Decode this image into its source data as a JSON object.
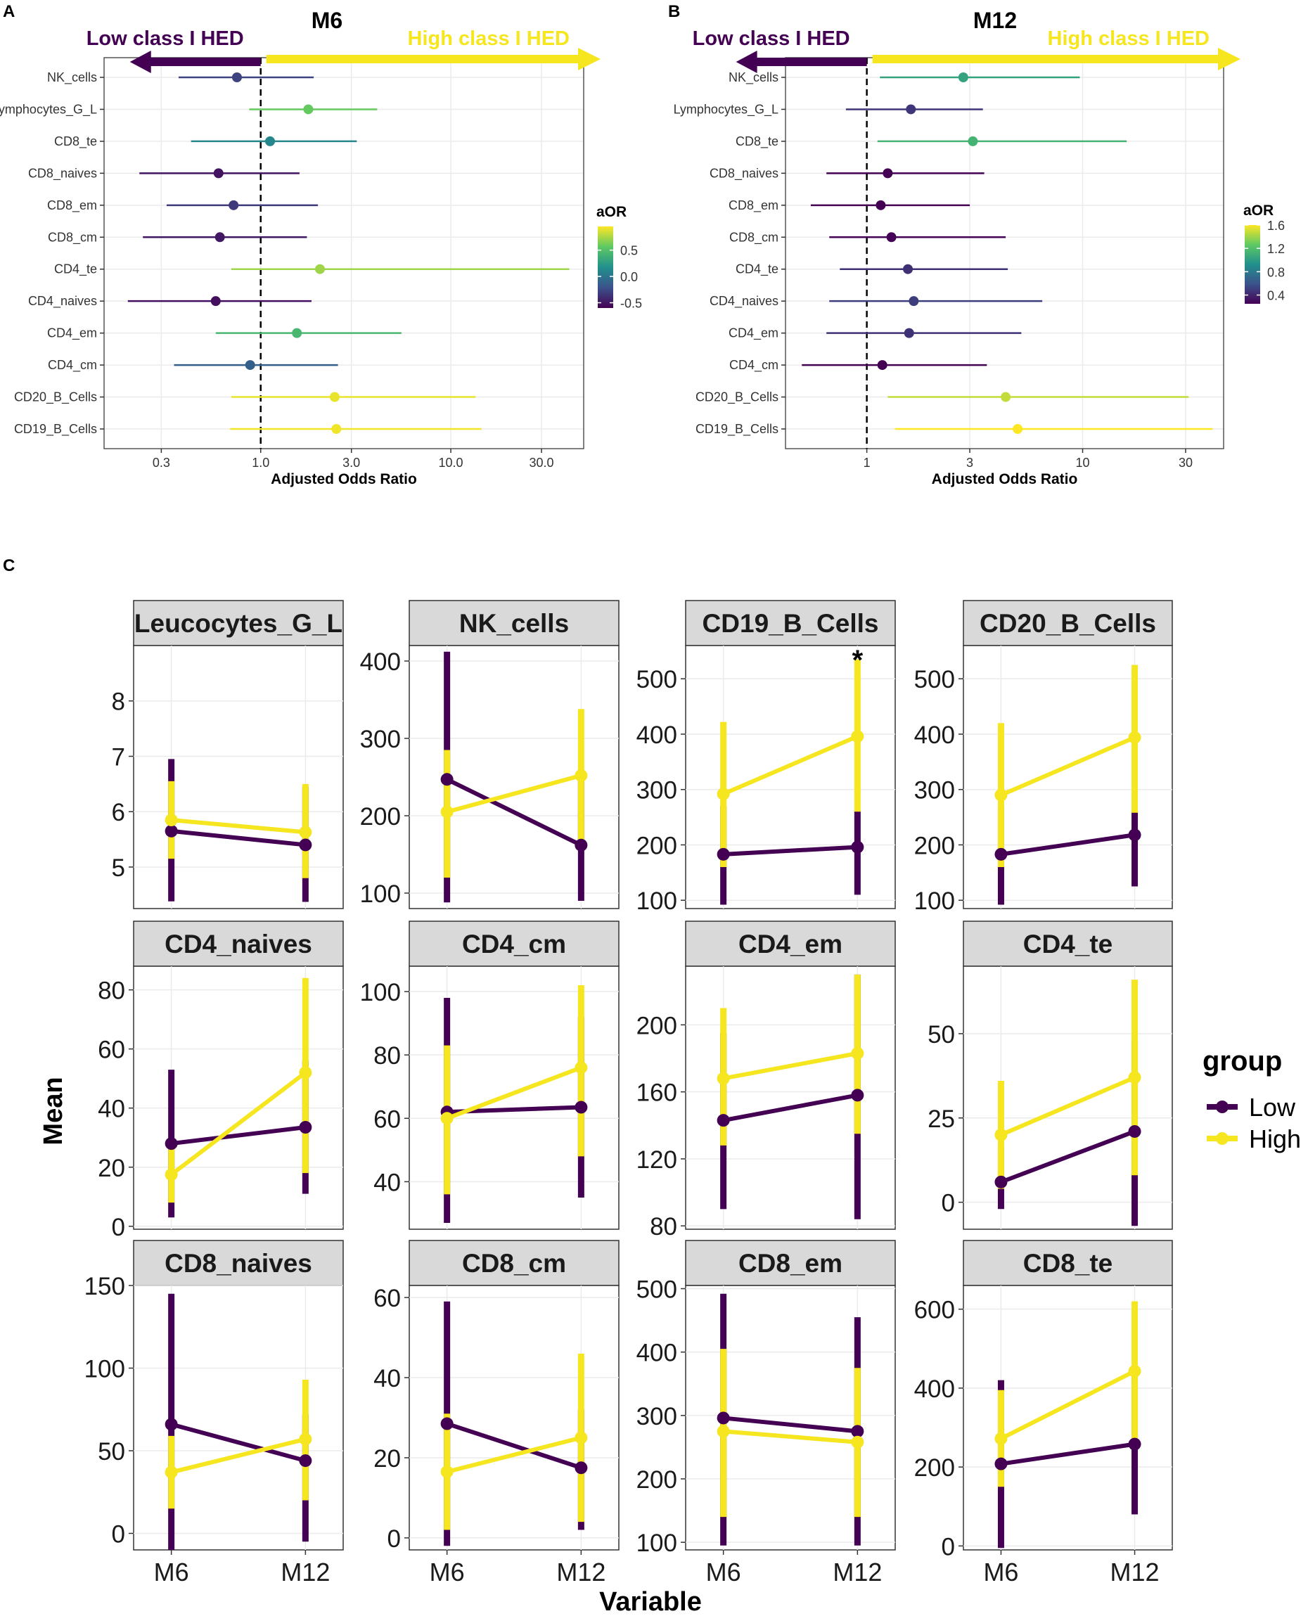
{
  "panel_labels": {
    "a": "A",
    "b": "B",
    "c": "C"
  },
  "colors": {
    "low": "#440154",
    "high": "#F5E61F",
    "grid": "#EBEBEB",
    "strip": "#D9D9D9",
    "viridis": [
      "#440154",
      "#3B528B",
      "#21908C",
      "#5DC963",
      "#FDE725"
    ]
  },
  "forest_common": {
    "low_arrow_label": "Low class I HED",
    "high_arrow_label": "High class I HED",
    "xlabel": "Adjusted Odds Ratio",
    "legend_title": "aOR"
  },
  "chart_data": [
    {
      "type": "forest",
      "title": "M6",
      "log_x": true,
      "xlim": [
        0.15,
        50
      ],
      "xticks": [
        0.3,
        1.0,
        3.0,
        10.0,
        30.0
      ],
      "xtick_labels": [
        "0.3",
        "1.0",
        "3.0",
        "10.0",
        "30.0"
      ],
      "reference_line": 1.0,
      "legend": {
        "min": -0.6,
        "max": 0.95,
        "ticks": [
          0.5,
          0.0,
          -0.5
        ],
        "tick_labels": [
          "0.5",
          "0.0",
          "-0.5"
        ]
      },
      "rows": [
        {
          "label": "NK_cells",
          "aor": 0.75,
          "lo": 0.37,
          "hi": 1.9,
          "color_value": -0.29
        },
        {
          "label": "Lymphocytes_G_L",
          "aor": 1.78,
          "lo": 0.87,
          "hi": 4.1,
          "color_value": 0.58
        },
        {
          "label": "CD8_te",
          "aor": 1.12,
          "lo": 0.43,
          "hi": 3.2,
          "color_value": 0.11
        },
        {
          "label": "CD8_naives",
          "aor": 0.6,
          "lo": 0.23,
          "hi": 1.6,
          "color_value": -0.51
        },
        {
          "label": "CD8_em",
          "aor": 0.72,
          "lo": 0.32,
          "hi": 2.0,
          "color_value": -0.33
        },
        {
          "label": "CD8_cm",
          "aor": 0.61,
          "lo": 0.24,
          "hi": 1.75,
          "color_value": -0.49
        },
        {
          "label": "CD4_te",
          "aor": 2.05,
          "lo": 0.7,
          "hi": 42,
          "color_value": 0.72
        },
        {
          "label": "CD4_naives",
          "aor": 0.58,
          "lo": 0.2,
          "hi": 1.85,
          "color_value": -0.54
        },
        {
          "label": "CD4_em",
          "aor": 1.55,
          "lo": 0.58,
          "hi": 5.5,
          "color_value": 0.44
        },
        {
          "label": "CD4_cm",
          "aor": 0.88,
          "lo": 0.35,
          "hi": 2.55,
          "color_value": -0.13
        },
        {
          "label": "CD20_B_Cells",
          "aor": 2.45,
          "lo": 0.7,
          "hi": 13.5,
          "color_value": 0.9
        },
        {
          "label": "CD19_B_Cells",
          "aor": 2.5,
          "lo": 0.69,
          "hi": 14.5,
          "color_value": 0.92
        }
      ]
    },
    {
      "type": "forest",
      "title": "M12",
      "log_x": true,
      "xlim": [
        0.42,
        45
      ],
      "xticks": [
        1,
        3,
        10,
        30
      ],
      "xtick_labels": [
        "1",
        "3",
        "10",
        "30"
      ],
      "reference_line": 1,
      "legend": {
        "min": 0.25,
        "max": 1.6,
        "ticks": [
          1.6,
          1.2,
          0.8,
          0.4
        ],
        "tick_labels": [
          "1.6",
          "1.2",
          "0.8",
          "0.4"
        ]
      },
      "rows": [
        {
          "label": "NK_cells",
          "aor": 2.8,
          "lo": 1.15,
          "hi": 9.7,
          "color_value": 1.03
        },
        {
          "label": "Lymphocytes_G_L",
          "aor": 1.6,
          "lo": 0.8,
          "hi": 3.45,
          "color_value": 0.47
        },
        {
          "label": "CD8_te",
          "aor": 3.1,
          "lo": 1.12,
          "hi": 16,
          "color_value": 1.13
        },
        {
          "label": "CD8_naives",
          "aor": 1.25,
          "lo": 0.65,
          "hi": 3.5,
          "color_value": 0.22
        },
        {
          "label": "CD8_em",
          "aor": 1.16,
          "lo": 0.55,
          "hi": 3.0,
          "color_value": 0.15
        },
        {
          "label": "CD8_cm",
          "aor": 1.3,
          "lo": 0.67,
          "hi": 4.4,
          "color_value": 0.26
        },
        {
          "label": "CD4_te",
          "aor": 1.55,
          "lo": 0.75,
          "hi": 4.5,
          "color_value": 0.44
        },
        {
          "label": "CD4_naives",
          "aor": 1.65,
          "lo": 0.67,
          "hi": 6.5,
          "color_value": 0.5
        },
        {
          "label": "CD4_em",
          "aor": 1.57,
          "lo": 0.65,
          "hi": 5.2,
          "color_value": 0.45
        },
        {
          "label": "CD4_cm",
          "aor": 1.18,
          "lo": 0.5,
          "hi": 3.6,
          "color_value": 0.17
        },
        {
          "label": "CD20_B_Cells",
          "aor": 4.4,
          "lo": 1.25,
          "hi": 31,
          "color_value": 1.48
        },
        {
          "label": "CD19_B_Cells",
          "aor": 5.0,
          "lo": 1.35,
          "hi": 40,
          "color_value": 1.61
        }
      ]
    },
    {
      "type": "line",
      "facet_layout": "3x4",
      "categories": [
        "M6",
        "M12"
      ],
      "xlabel": "Variable",
      "ylabel": "Mean",
      "legend": {
        "title": "group",
        "entries": [
          "Low",
          "High"
        ]
      },
      "facets": [
        {
          "title": "Leucocytes_G_L",
          "ylim": [
            4.25,
            9.0
          ],
          "yticks": [
            5,
            6,
            7,
            8
          ],
          "ytick_labels": [
            "5",
            "6",
            "7",
            "8"
          ],
          "series": [
            {
              "name": "Low",
              "values": [
                5.65,
                5.4
              ],
              "err_lo": [
                4.38,
                4.37
              ],
              "err_hi": [
                6.95,
                6.45
              ]
            },
            {
              "name": "High",
              "values": [
                5.85,
                5.63
              ],
              "err_lo": [
                5.15,
                4.8
              ],
              "err_hi": [
                6.55,
                6.5
              ]
            }
          ],
          "annotation": null
        },
        {
          "title": "NK_cells",
          "ylim": [
            80,
            420
          ],
          "yticks": [
            100,
            200,
            300,
            400
          ],
          "ytick_labels": [
            "100",
            "200",
            "300",
            "400"
          ],
          "series": [
            {
              "name": "Low",
              "values": [
                247,
                162
              ],
              "err_lo": [
                88,
                90
              ],
              "err_hi": [
                412,
                245
              ]
            },
            {
              "name": "High",
              "values": [
                205,
                252
              ],
              "err_lo": [
                120,
                168
              ],
              "err_hi": [
                285,
                338
              ]
            }
          ],
          "annotation": null
        },
        {
          "title": "CD19_B_Cells",
          "ylim": [
            85,
            560
          ],
          "yticks": [
            100,
            200,
            300,
            400,
            500
          ],
          "ytick_labels": [
            "100",
            "200",
            "300",
            "400",
            "500"
          ],
          "series": [
            {
              "name": "Low",
              "values": [
                183,
                196
              ],
              "err_lo": [
                92,
                110
              ],
              "err_hi": [
                270,
                262
              ]
            },
            {
              "name": "High",
              "values": [
                292,
                396
              ],
              "err_lo": [
                160,
                260
              ],
              "err_hi": [
                422,
                535
              ]
            }
          ],
          "annotation": {
            "text": "*",
            "category": "M12",
            "y": 545
          }
        },
        {
          "title": "CD20_B_Cells",
          "ylim": [
            85,
            560
          ],
          "yticks": [
            100,
            200,
            300,
            400,
            500
          ],
          "ytick_labels": [
            "100",
            "200",
            "300",
            "400",
            "500"
          ],
          "series": [
            {
              "name": "Low",
              "values": [
                183,
                218
              ],
              "err_lo": [
                92,
                125
              ],
              "err_hi": [
                270,
                262
              ]
            },
            {
              "name": "High",
              "values": [
                290,
                394
              ],
              "err_lo": [
                160,
                258
              ],
              "err_hi": [
                420,
                525
              ]
            }
          ],
          "annotation": null
        },
        {
          "title": "CD4_naives",
          "ylim": [
            -1,
            88
          ],
          "yticks": [
            0,
            20,
            40,
            60,
            80
          ],
          "ytick_labels": [
            "0",
            "20",
            "40",
            "60",
            "80"
          ],
          "series": [
            {
              "name": "Low",
              "values": [
                28,
                33.5
              ],
              "err_lo": [
                3,
                11
              ],
              "err_hi": [
                53,
                56
              ]
            },
            {
              "name": "High",
              "values": [
                17.5,
                52
              ],
              "err_lo": [
                8,
                18
              ],
              "err_hi": [
                27,
                84
              ]
            }
          ],
          "annotation": null
        },
        {
          "title": "CD4_cm",
          "ylim": [
            25,
            108
          ],
          "yticks": [
            40,
            60,
            80,
            100
          ],
          "ytick_labels": [
            "40",
            "60",
            "80",
            "100"
          ],
          "series": [
            {
              "name": "Low",
              "values": [
                62,
                63.5
              ],
              "err_lo": [
                27,
                35
              ],
              "err_hi": [
                98,
                92
              ]
            },
            {
              "name": "High",
              "values": [
                60,
                76
              ],
              "err_lo": [
                36,
                48
              ],
              "err_hi": [
                83,
                102
              ]
            }
          ],
          "annotation": null
        },
        {
          "title": "CD4_em",
          "ylim": [
            78,
            235
          ],
          "yticks": [
            80,
            120,
            160,
            200
          ],
          "ytick_labels": [
            "80",
            "120",
            "160",
            "200"
          ],
          "series": [
            {
              "name": "Low",
              "values": [
                143,
                158
              ],
              "err_lo": [
                90,
                84
              ],
              "err_hi": [
                195,
                230
              ]
            },
            {
              "name": "High",
              "values": [
                168,
                183
              ],
              "err_lo": [
                128,
                135
              ],
              "err_hi": [
                210,
                230
              ]
            }
          ],
          "annotation": null
        },
        {
          "title": "CD4_te",
          "ylim": [
            -8,
            70
          ],
          "yticks": [
            0,
            25,
            50
          ],
          "ytick_labels": [
            "0",
            "25",
            "50"
          ],
          "series": [
            {
              "name": "Low",
              "values": [
                6,
                21
              ],
              "err_lo": [
                -2,
                -7
              ],
              "err_hi": [
                16,
                48
              ]
            },
            {
              "name": "High",
              "values": [
                20,
                37
              ],
              "err_lo": [
                4,
                8
              ],
              "err_hi": [
                36,
                66
              ]
            }
          ],
          "annotation": null
        },
        {
          "title": "CD8_naives",
          "ylim": [
            -10,
            150
          ],
          "yticks": [
            0,
            50,
            100,
            150
          ],
          "ytick_labels": [
            "0",
            "50",
            "100",
            "150"
          ],
          "series": [
            {
              "name": "Low",
              "values": [
                66,
                44
              ],
              "err_lo": [
                -10,
                -5
              ],
              "err_hi": [
                145,
                72
              ]
            },
            {
              "name": "High",
              "values": [
                37,
                57
              ],
              "err_lo": [
                15,
                20
              ],
              "err_hi": [
                59,
                93
              ]
            }
          ],
          "annotation": null
        },
        {
          "title": "CD8_cm",
          "ylim": [
            -3,
            63
          ],
          "yticks": [
            0,
            20,
            40,
            60
          ],
          "ytick_labels": [
            "0",
            "20",
            "40",
            "60"
          ],
          "series": [
            {
              "name": "Low",
              "values": [
                28.5,
                17.5
              ],
              "err_lo": [
                -2,
                2
              ],
              "err_hi": [
                59,
                32
              ]
            },
            {
              "name": "High",
              "values": [
                16.5,
                25
              ],
              "err_lo": [
                2,
                4
              ],
              "err_hi": [
                31,
                46
              ]
            }
          ],
          "annotation": null
        },
        {
          "title": "CD8_em",
          "ylim": [
            88,
            505
          ],
          "yticks": [
            100,
            200,
            300,
            400,
            500
          ],
          "ytick_labels": [
            "100",
            "200",
            "300",
            "400",
            "500"
          ],
          "series": [
            {
              "name": "Low",
              "values": [
                296,
                275
              ],
              "err_lo": [
                95,
                95
              ],
              "err_hi": [
                492,
                455
              ]
            },
            {
              "name": "High",
              "values": [
                275,
                258
              ],
              "err_lo": [
                140,
                140
              ],
              "err_hi": [
                405,
                375
              ]
            }
          ],
          "annotation": null
        },
        {
          "title": "CD8_te",
          "ylim": [
            -10,
            660
          ],
          "yticks": [
            0,
            200,
            400,
            600
          ],
          "ytick_labels": [
            "0",
            "200",
            "400",
            "600"
          ],
          "series": [
            {
              "name": "Low",
              "values": [
                208,
                258
              ],
              "err_lo": [
                -5,
                80
              ],
              "err_hi": [
                420,
                436
              ]
            },
            {
              "name": "High",
              "values": [
                272,
                443
              ],
              "err_lo": [
                150,
                260
              ],
              "err_hi": [
                395,
                620
              ]
            }
          ],
          "annotation": null
        }
      ]
    }
  ]
}
